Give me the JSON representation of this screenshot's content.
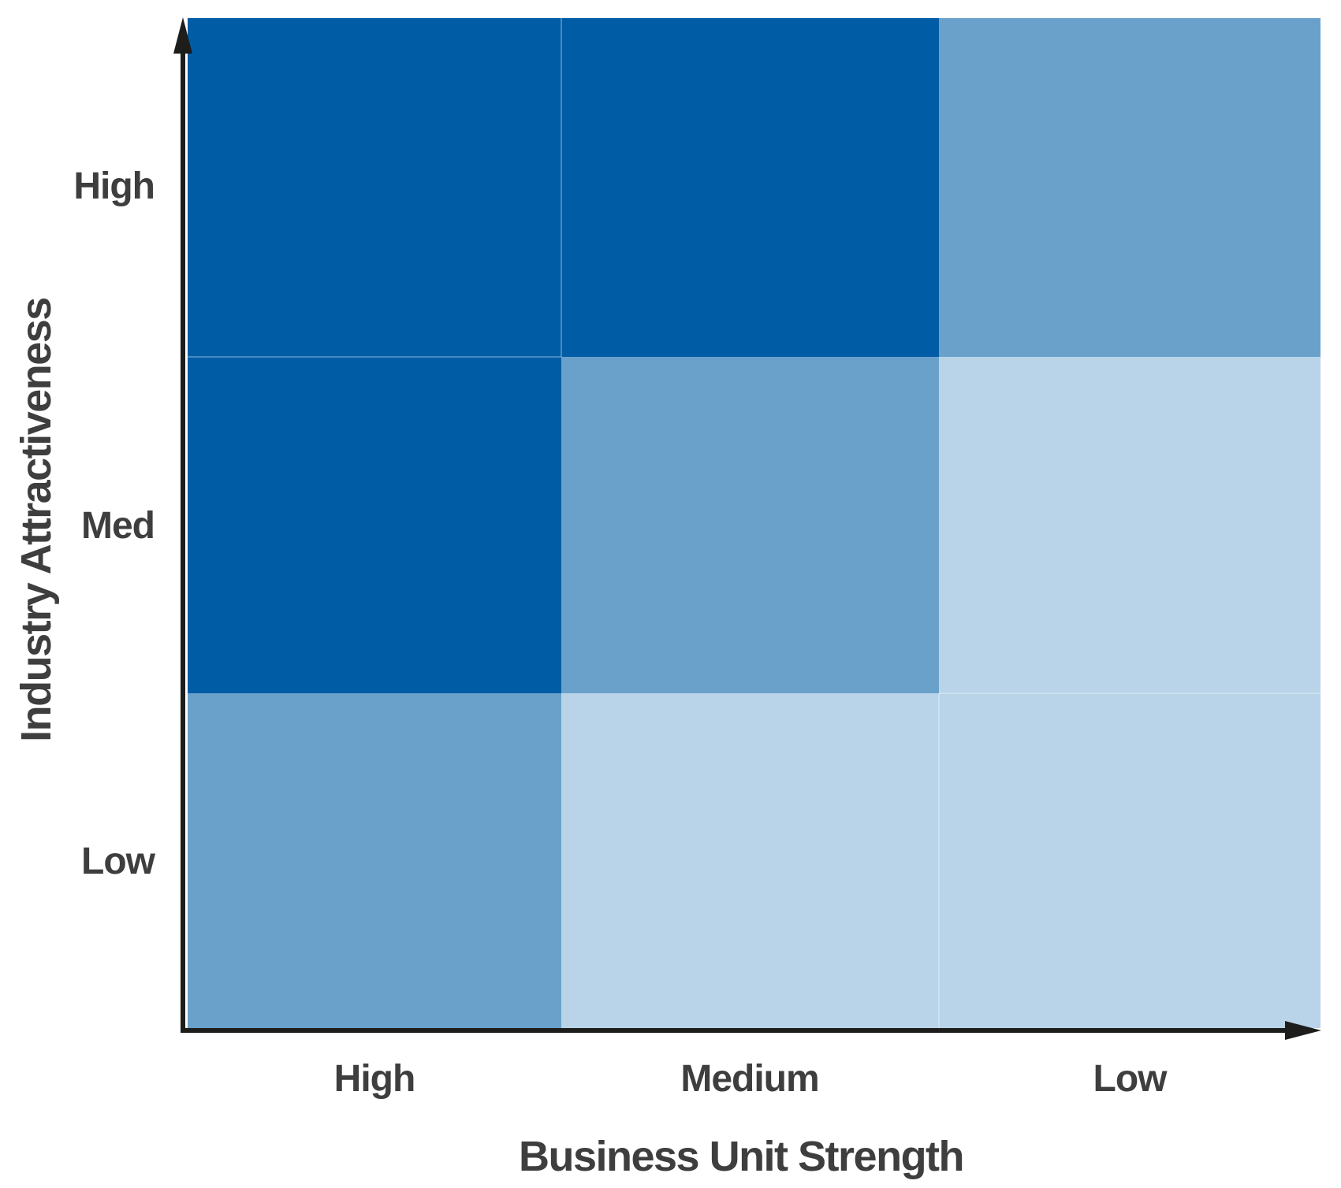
{
  "chart_data": {
    "type": "heatmap",
    "xlabel": "Business Unit Strength",
    "ylabel": "Industry Attractiveness",
    "x_categories": [
      "High",
      "Medium",
      "Low"
    ],
    "y_categories": [
      "High",
      "Med",
      "Low"
    ],
    "cells": [
      [
        "dark",
        "dark",
        "medium"
      ],
      [
        "dark",
        "medium",
        "light"
      ],
      [
        "medium",
        "light",
        "light"
      ]
    ],
    "palette": {
      "dark": "#005DA5",
      "medium": "#6AA1CB",
      "light": "#B9D4E9"
    },
    "axis_color": "#1D1D1B",
    "text_color": "#3E3E3E",
    "grid": "3x3 matrix, no gridlines",
    "legend": "none",
    "axes": "arrowed x and y axes"
  }
}
